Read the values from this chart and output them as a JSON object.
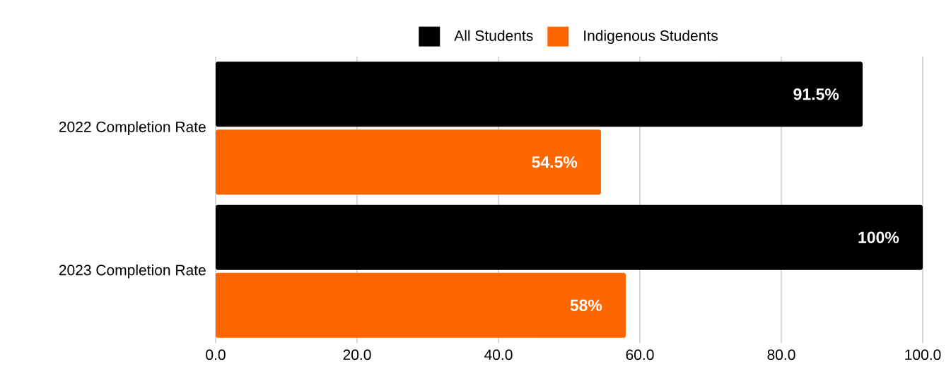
{
  "chart_data": {
    "type": "bar",
    "orientation": "horizontal",
    "categories": [
      "2022 Completion Rate",
      "2023 Completion Rate"
    ],
    "series": [
      {
        "name": "All Students",
        "color": "#000000",
        "values": [
          91.5,
          100
        ],
        "value_labels": [
          "91.5%",
          "100%"
        ]
      },
      {
        "name": "Indigenous Students",
        "color": "#ff6600",
        "values": [
          54.5,
          58
        ],
        "value_labels": [
          "54.5%",
          "58%"
        ]
      }
    ],
    "xlim": [
      0,
      100
    ],
    "xticks": [
      {
        "value": 0,
        "label": "0.0"
      },
      {
        "value": 20,
        "label": "20.0"
      },
      {
        "value": 40,
        "label": "40.0"
      },
      {
        "value": 60,
        "label": "60.0"
      },
      {
        "value": 80,
        "label": "80.0"
      },
      {
        "value": 100,
        "label": "100.0"
      }
    ],
    "grid": "x",
    "legend": "top"
  }
}
